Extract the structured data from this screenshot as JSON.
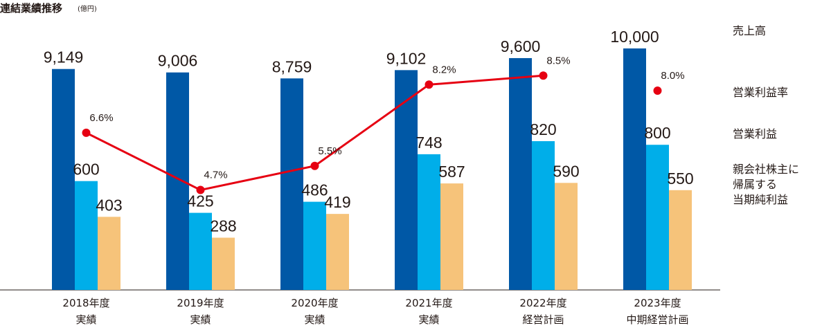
{
  "chart_data": {
    "type": "bar",
    "title": "連結業績推移",
    "unit": "(億円)",
    "categories": [
      [
        "2018年度",
        "実績"
      ],
      [
        "2019年度",
        "実績"
      ],
      [
        "2020年度",
        "実績"
      ],
      [
        "2021年度",
        "実績"
      ],
      [
        "2022年度",
        "経営計画"
      ],
      [
        "2023年度",
        "中期経営計画"
      ]
    ],
    "series": [
      {
        "name": "売上高",
        "color": "#0058a6",
        "values": [
          9149,
          9006,
          8759,
          9102,
          9600,
          10000
        ],
        "labels": [
          "9,149",
          "9,006",
          "8,759",
          "9,102",
          "9,600",
          "10,000"
        ]
      },
      {
        "name": "営業利益",
        "color": "#00aee9",
        "values": [
          600,
          425,
          486,
          748,
          820,
          800
        ],
        "labels": [
          "600",
          "425",
          "486",
          "748",
          "820",
          "800"
        ]
      },
      {
        "name": "親会社株主に帰属する当期純利益",
        "legend_lines": [
          "親会社株主に",
          "帰属する",
          "当期純利益"
        ],
        "color": "#f6c37a",
        "values": [
          403,
          288,
          419,
          587,
          590,
          550
        ],
        "labels": [
          "403",
          "288",
          "419",
          "587",
          "590",
          "550"
        ]
      }
    ],
    "line_series": {
      "name": "営業利益率",
      "color": "#e60012",
      "values": [
        6.6,
        4.7,
        5.5,
        8.2,
        8.5,
        8.0
      ],
      "labels": [
        "6.6%",
        "4.7%",
        "5.5%",
        "8.2%",
        "8.5%",
        "8.0%"
      ],
      "connected": [
        true,
        true,
        true,
        true,
        true,
        false
      ]
    },
    "legend_order": [
      "売上高",
      "営業利益率",
      "営業利益",
      "親会社株主に帰属する当期純利益"
    ]
  }
}
